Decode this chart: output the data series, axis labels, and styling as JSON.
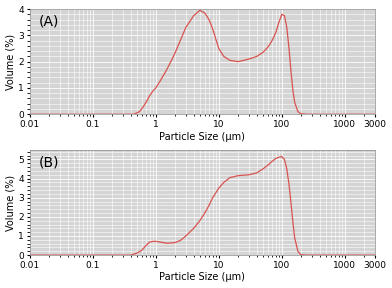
{
  "title_A": "(A)",
  "title_B": "(B)",
  "xlabel": "Particle Size (μm)",
  "ylabel": "Volume (%)",
  "xlim": [
    0.01,
    3000
  ],
  "ylim_A": [
    0,
    4
  ],
  "ylim_B": [
    0,
    5.5
  ],
  "yticks_A": [
    0,
    1,
    2,
    3,
    4
  ],
  "yticks_B": [
    0,
    1,
    2,
    3,
    4,
    5
  ],
  "line_color": "#d9534f",
  "bg_color": "#d4d4d4",
  "grid_color": "#ffffff",
  "curve_A_x": [
    0.01,
    0.05,
    0.1,
    0.2,
    0.3,
    0.35,
    0.4,
    0.45,
    0.5,
    0.55,
    0.6,
    0.7,
    0.8,
    0.9,
    1.0,
    1.2,
    1.5,
    2.0,
    2.5,
    3.0,
    4.0,
    5.0,
    6.0,
    7.0,
    8.0,
    9.0,
    10.0,
    12.0,
    15.0,
    20.0,
    25.0,
    30.0,
    35.0,
    40.0,
    50.0,
    60.0,
    70.0,
    80.0,
    90.0,
    100.0,
    110.0,
    120.0,
    130.0,
    140.0,
    150.0,
    160.0,
    180.0,
    200.0,
    250.0,
    300.0,
    500.0,
    3000.0
  ],
  "curve_A_y": [
    0,
    0,
    0,
    0,
    0,
    0,
    0,
    0,
    0.05,
    0.1,
    0.2,
    0.45,
    0.7,
    0.88,
    1.0,
    1.3,
    1.7,
    2.3,
    2.85,
    3.3,
    3.75,
    3.95,
    3.85,
    3.6,
    3.25,
    2.85,
    2.5,
    2.2,
    2.05,
    2.0,
    2.05,
    2.1,
    2.15,
    2.2,
    2.35,
    2.55,
    2.8,
    3.1,
    3.5,
    3.8,
    3.75,
    3.3,
    2.5,
    1.6,
    0.9,
    0.45,
    0.1,
    0.02,
    0.0,
    0.0,
    0.0,
    0.0
  ],
  "curve_B_x": [
    0.01,
    0.05,
    0.1,
    0.15,
    0.2,
    0.3,
    0.35,
    0.4,
    0.45,
    0.5,
    0.6,
    0.7,
    0.8,
    0.9,
    1.0,
    1.2,
    1.5,
    2.0,
    2.5,
    3.0,
    4.0,
    5.0,
    6.0,
    7.0,
    8.0,
    10.0,
    12.0,
    15.0,
    20.0,
    25.0,
    30.0,
    40.0,
    50.0,
    60.0,
    70.0,
    80.0,
    90.0,
    100.0,
    110.0,
    120.0,
    130.0,
    140.0,
    150.0,
    160.0,
    180.0,
    200.0,
    250.0,
    300.0,
    500.0,
    3000.0
  ],
  "curve_B_y": [
    0,
    0,
    0,
    0,
    0,
    0,
    0,
    0,
    0.05,
    0.1,
    0.25,
    0.5,
    0.68,
    0.72,
    0.72,
    0.68,
    0.62,
    0.65,
    0.78,
    1.0,
    1.4,
    1.8,
    2.2,
    2.6,
    3.0,
    3.5,
    3.8,
    4.05,
    4.15,
    4.18,
    4.2,
    4.3,
    4.5,
    4.7,
    4.9,
    5.05,
    5.12,
    5.15,
    5.0,
    4.5,
    3.7,
    2.7,
    1.7,
    0.9,
    0.2,
    0.02,
    0.0,
    0.0,
    0.0,
    0.0
  ]
}
